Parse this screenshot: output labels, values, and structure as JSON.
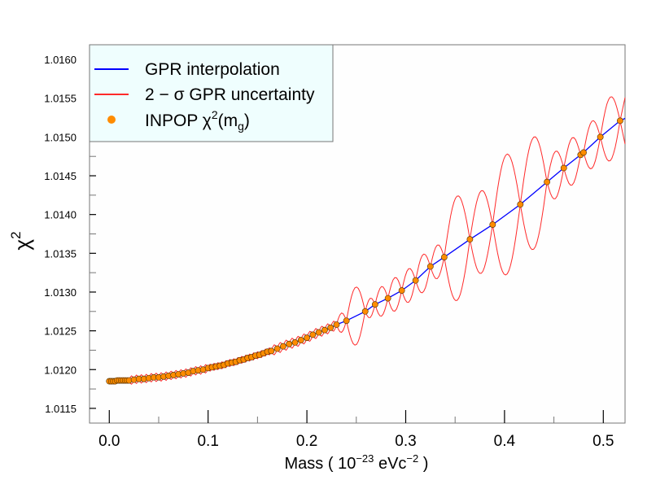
{
  "chart_data": {
    "type": "line",
    "title": "",
    "xlabel": {
      "prefix": "Mass ( 10",
      "exp1": "−23",
      "mid": " eVc",
      "exp2": "−2",
      "suffix": " )"
    },
    "ylabel": {
      "base": "χ",
      "exp": "2"
    },
    "xlim": [
      -0.02,
      0.522
    ],
    "ylim": [
      1.01131,
      1.01619
    ],
    "grid": false,
    "legend_position": "top-left",
    "x_ticks": [
      "0.0",
      "0.1",
      "0.2",
      "0.3",
      "0.4",
      "0.5"
    ],
    "y_ticks": [
      "1.0115",
      "1.0120",
      "1.0125",
      "1.0130",
      "1.0135",
      "1.0140",
      "1.0145",
      "1.0150",
      "1.0155",
      "1.0160"
    ],
    "legend": {
      "gpr": "GPR interpolation",
      "sigma": "2 − σ GPR uncertainty",
      "inpop_prefix": "INPOP χ",
      "inpop_exp": "2",
      "inpop_open": "(m",
      "inpop_sub": "g",
      "inpop_close": ")"
    },
    "colors": {
      "gpr": "#0000ff",
      "sigma": "#ff2a2a",
      "points": "#ff8c00",
      "point_edge": "#4a3000",
      "legend_bg": "#effefe"
    },
    "series": [
      {
        "name": "INPOP χ2(mg)",
        "kind": "scatter",
        "x": [
          0,
          0.002,
          0.004,
          0.006,
          0.008,
          0.01,
          0.012,
          0.014,
          0.016,
          0.018,
          0.02,
          0.025,
          0.03,
          0.035,
          0.04,
          0.045,
          0.05,
          0.055,
          0.06,
          0.065,
          0.07,
          0.075,
          0.08,
          0.085,
          0.09,
          0.095,
          0.1,
          0.104,
          0.108,
          0.112,
          0.116,
          0.12,
          0.124,
          0.128,
          0.132,
          0.136,
          0.14,
          0.144,
          0.148,
          0.152,
          0.156,
          0.16,
          0.164,
          0.17,
          0.176,
          0.182,
          0.188,
          0.194,
          0.2,
          0.206,
          0.212,
          0.218,
          0.224,
          0.23,
          0.24,
          0.259,
          0.269,
          0.282,
          0.296,
          0.31,
          0.325,
          0.339,
          0.365,
          0.388,
          0.416,
          0.443,
          0.46,
          0.477,
          0.48,
          0.497,
          0.517
        ],
        "y": [
          1.01185,
          1.01185,
          1.01185,
          1.01185,
          1.01186,
          1.01186,
          1.01186,
          1.01186,
          1.01186,
          1.01186,
          1.01186,
          1.01187,
          1.01188,
          1.01188,
          1.01189,
          1.0119,
          1.0119,
          1.01191,
          1.01192,
          1.01193,
          1.01194,
          1.01195,
          1.01196,
          1.01198,
          1.01199,
          1.012,
          1.01202,
          1.01203,
          1.01204,
          1.01205,
          1.01206,
          1.01208,
          1.01209,
          1.0121,
          1.01212,
          1.01213,
          1.01215,
          1.01216,
          1.01218,
          1.01219,
          1.01221,
          1.01223,
          1.01224,
          1.01227,
          1.0123,
          1.01233,
          1.01235,
          1.01238,
          1.01241,
          1.01245,
          1.01248,
          1.01251,
          1.01254,
          1.01258,
          1.01263,
          1.01275,
          1.01284,
          1.01292,
          1.01302,
          1.01315,
          1.01333,
          1.01345,
          1.01368,
          1.01387,
          1.01413,
          1.01442,
          1.0146,
          1.01477,
          1.0148,
          1.015,
          1.01521
        ]
      }
    ]
  }
}
